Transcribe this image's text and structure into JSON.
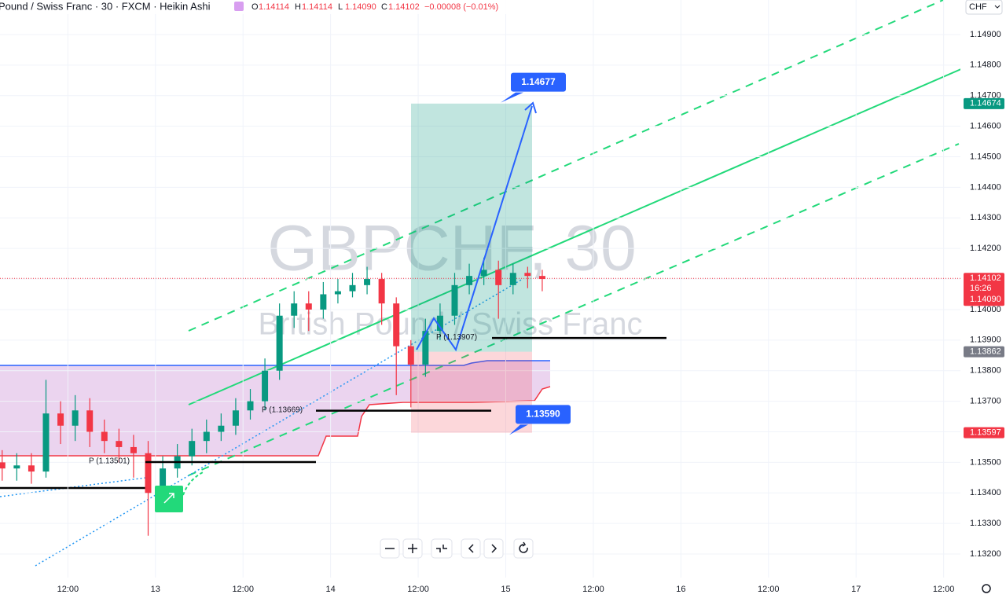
{
  "header": {
    "symbol": "Pound / Swiss Franc · 30 · FXCM · Heikin Ashi",
    "ohlc": [
      {
        "label": "O",
        "value": "1.14114"
      },
      {
        "label": "H",
        "value": "1.14114"
      },
      {
        "label": "L",
        "value": "1.14090"
      },
      {
        "label": "C",
        "value": "1.14102"
      }
    ],
    "change": "−0.00008 (−0.01%)",
    "currency": "CHF"
  },
  "watermark": {
    "ticker": "GBPCHF, 30",
    "name": "British Pound / Swiss Franc"
  },
  "chart_data": {
    "type": "candlestick",
    "up_color": "#089981",
    "down_color": "#f23645",
    "xlim": [
      -21.3,
      110.3
    ],
    "ylim": [
      1.13123,
      1.15013
    ],
    "xticks": [
      {
        "value": -12,
        "label": "12:00"
      },
      {
        "value": 0,
        "label": "13"
      },
      {
        "value": 12,
        "label": "12:00"
      },
      {
        "value": 24,
        "label": "14"
      },
      {
        "value": 36,
        "label": "12:00"
      },
      {
        "value": 48,
        "label": "15"
      },
      {
        "value": 60,
        "label": "12:00"
      },
      {
        "value": 72,
        "label": "16"
      },
      {
        "value": 84,
        "label": "12:00"
      },
      {
        "value": 96,
        "label": "17"
      },
      {
        "value": 108,
        "label": "12:00"
      }
    ],
    "yticks": [
      {
        "value": 1.132,
        "label": "1.13200"
      },
      {
        "value": 1.133,
        "label": "1.13300"
      },
      {
        "value": 1.134,
        "label": "1.13400"
      },
      {
        "value": 1.135,
        "label": "1.13500"
      },
      {
        "value": 1.136,
        "label": "1.13600"
      },
      {
        "value": 1.137,
        "label": "1.13700"
      },
      {
        "value": 1.138,
        "label": "1.13800"
      },
      {
        "value": 1.139,
        "label": "1.13900"
      },
      {
        "value": 1.14,
        "label": "1.14000"
      },
      {
        "value": 1.141,
        "label": "1.14100"
      },
      {
        "value": 1.142,
        "label": "1.14200"
      },
      {
        "value": 1.143,
        "label": "1.14300"
      },
      {
        "value": 1.144,
        "label": "1.14400"
      },
      {
        "value": 1.145,
        "label": "1.14500"
      },
      {
        "value": 1.146,
        "label": "1.14600"
      },
      {
        "value": 1.147,
        "label": "1.14700"
      },
      {
        "value": 1.148,
        "label": "1.14800"
      },
      {
        "value": 1.149,
        "label": "1.14900"
      }
    ],
    "x": [
      -21,
      -19,
      -17,
      -15,
      -13,
      -11,
      -9,
      -7,
      -5,
      -3,
      -1,
      1,
      3,
      5,
      7,
      9,
      11,
      13,
      15,
      17,
      19,
      21,
      23,
      25,
      27,
      29,
      31,
      33,
      35,
      37,
      39,
      41,
      43,
      45,
      47,
      49,
      51,
      53
    ],
    "open": [
      1.135,
      1.1348,
      1.1349,
      1.1347,
      1.1366,
      1.1362,
      1.1367,
      1.136,
      1.1357,
      1.1355,
      1.1353,
      1.134,
      1.1348,
      1.1352,
      1.1357,
      1.136,
      1.1362,
      1.1367,
      1.137,
      1.138,
      1.1398,
      1.1402,
      1.14,
      1.1405,
      1.1406,
      1.1408,
      1.141,
      1.1402,
      1.1388,
      1.1382,
      1.1393,
      1.1398,
      1.1408,
      1.1411,
      1.1413,
      1.1408,
      1.1412,
      1.1411
    ],
    "high": [
      1.1354,
      1.1353,
      1.1353,
      1.1377,
      1.137,
      1.1372,
      1.1371,
      1.1364,
      1.1361,
      1.1359,
      1.1357,
      1.1352,
      1.1356,
      1.1361,
      1.1364,
      1.1366,
      1.1371,
      1.1374,
      1.1384,
      1.1402,
      1.1406,
      1.1406,
      1.1409,
      1.141,
      1.1412,
      1.1414,
      1.1412,
      1.1404,
      1.139,
      1.1397,
      1.1402,
      1.1412,
      1.1415,
      1.1417,
      1.1416,
      1.1415,
      1.1414,
      1.1413
    ],
    "low": [
      1.1344,
      1.1344,
      1.1343,
      1.1345,
      1.1356,
      1.1357,
      1.1355,
      1.1353,
      1.135,
      1.1345,
      1.1326,
      1.1337,
      1.1345,
      1.1349,
      1.1353,
      1.1357,
      1.1359,
      1.1364,
      1.1367,
      1.1377,
      1.1394,
      1.1393,
      1.1397,
      1.1402,
      1.1404,
      1.1405,
      1.1395,
      1.1372,
      1.1368,
      1.1378,
      1.139,
      1.1395,
      1.1405,
      1.1408,
      1.1397,
      1.1405,
      1.1407,
      1.1406
    ],
    "close": [
      1.1348,
      1.1349,
      1.1347,
      1.1366,
      1.1362,
      1.1367,
      1.136,
      1.1357,
      1.1355,
      1.1353,
      1.134,
      1.1348,
      1.1352,
      1.1357,
      1.136,
      1.1362,
      1.1367,
      1.137,
      1.138,
      1.1398,
      1.1402,
      1.14,
      1.1405,
      1.1406,
      1.1408,
      1.141,
      1.1402,
      1.1388,
      1.1382,
      1.1393,
      1.1398,
      1.1408,
      1.1411,
      1.1413,
      1.1408,
      1.1412,
      1.1411,
      1.141
    ],
    "position": {
      "target": 1.14674,
      "entry": 1.13862,
      "stop": 1.13597
    },
    "current": {
      "price": 1.14102,
      "countdown": "16:26",
      "low": {
        "value": 1.1409,
        "label": "1.14090"
      }
    },
    "callouts": [
      {
        "value": 1.14677,
        "label": "1.14677"
      },
      {
        "value": 1.1359,
        "label": "1.13590"
      }
    ],
    "pivots": [
      {
        "value": 1.13907,
        "label": "P (1.13907)"
      },
      {
        "value": 1.13669,
        "label": "P (1.13669)"
      },
      {
        "value": 1.13501,
        "label": "P (1.13501)"
      }
    ]
  }
}
